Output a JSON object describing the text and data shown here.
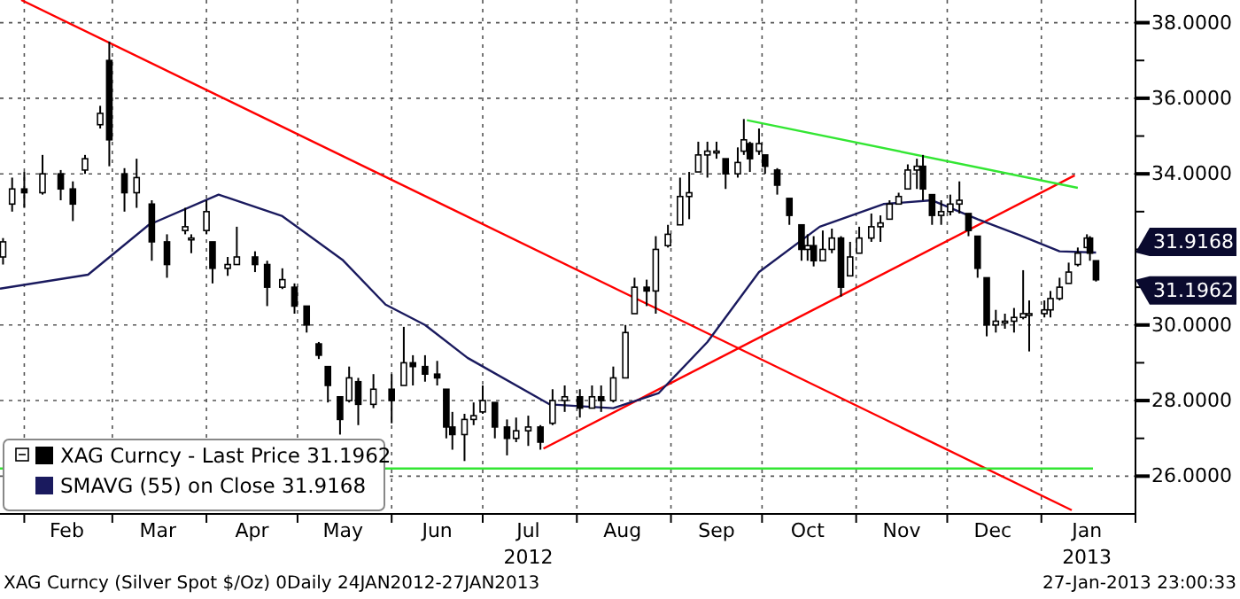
{
  "chart_data": {
    "type": "candlestick",
    "xlim": [
      "2012-01-24",
      "2013-02-01"
    ],
    "xticks": [
      {
        "value": "2012-02-01",
        "label": null
      },
      {
        "value": "2012-02-15",
        "label": "Feb"
      },
      {
        "value": "2012-03-01",
        "label": null
      },
      {
        "value": "2012-03-16",
        "label": "Mar"
      },
      {
        "value": "2012-04-01",
        "label": null
      },
      {
        "value": "2012-04-16",
        "label": "Apr"
      },
      {
        "value": "2012-05-01",
        "label": null
      },
      {
        "value": "2012-05-16",
        "label": "May"
      },
      {
        "value": "2012-06-01",
        "label": null
      },
      {
        "value": "2012-06-16",
        "label": "Jun"
      },
      {
        "value": "2012-07-01",
        "label": null
      },
      {
        "value": "2012-07-16",
        "label": "Jul\n2012"
      },
      {
        "value": "2012-08-01",
        "label": null
      },
      {
        "value": "2012-08-16",
        "label": "Aug"
      },
      {
        "value": "2012-09-01",
        "label": null
      },
      {
        "value": "2012-09-16",
        "label": "Sep"
      },
      {
        "value": "2012-10-01",
        "label": null
      },
      {
        "value": "2012-10-16",
        "label": "Oct"
      },
      {
        "value": "2012-11-01",
        "label": null
      },
      {
        "value": "2012-11-16",
        "label": "Nov"
      },
      {
        "value": "2012-12-01",
        "label": null
      },
      {
        "value": "2012-12-16",
        "label": "Dec"
      },
      {
        "value": "2013-01-01",
        "label": null
      },
      {
        "value": "2013-01-16",
        "label": "Jan\n2013"
      },
      {
        "value": "2013-02-01",
        "label": null
      }
    ],
    "ylim": [
      25,
      38.6
    ],
    "yticks": [
      {
        "value": 26,
        "label": "26.0000"
      },
      {
        "value": 27,
        "label": null
      },
      {
        "value": 28,
        "label": "28.0000"
      },
      {
        "value": 29,
        "label": null
      },
      {
        "value": 30,
        "label": "30.0000"
      },
      {
        "value": 31,
        "label": null
      },
      {
        "value": 32,
        "label": null
      },
      {
        "value": 33,
        "label": null
      },
      {
        "value": 34,
        "label": "34.0000"
      },
      {
        "value": 35,
        "label": null
      },
      {
        "value": 36,
        "label": "36.0000"
      },
      {
        "value": 37,
        "label": null
      },
      {
        "value": 38,
        "label": "38.0000"
      }
    ],
    "grid": true,
    "legend": "bottom left",
    "series": [
      {
        "type": "line",
        "color": "#ff0000",
        "x": [
          "2012-01-31",
          "2013-01-11"
        ],
        "values": [
          38.6,
          25.1
        ]
      },
      {
        "type": "line",
        "color": "#ff0000",
        "x": [
          "2012-07-21",
          "2013-01-12"
        ],
        "values": [
          26.73,
          33.96
        ]
      },
      {
        "type": "line",
        "color": "#33e633",
        "x": [
          "2012-09-26",
          "2013-01-13"
        ],
        "values": [
          35.42,
          33.63
        ]
      },
      {
        "type": "line",
        "color": "#33e633",
        "x": [
          "2012-01-24",
          "2013-01-18"
        ],
        "values": [
          26.2,
          26.2
        ]
      },
      {
        "type": "line",
        "name": "SMAVG (55) on Close 31.9168",
        "color": "#1a1a5e",
        "x": [
          "2012-01-24",
          "2012-02-22",
          "2012-03-13",
          "2012-04-05",
          "2012-04-26",
          "2012-05-16",
          "2012-05-30",
          "2012-06-12",
          "2012-06-26",
          "2012-07-23",
          "2012-08-13",
          "2012-08-28",
          "2012-09-13",
          "2012-09-30",
          "2012-10-20",
          "2012-11-10",
          "2012-11-26",
          "2012-12-11",
          "2012-12-25",
          "2013-01-07",
          "2013-01-19"
        ],
        "values": [
          30.96,
          31.33,
          32.65,
          33.45,
          32.88,
          31.71,
          30.54,
          30.0,
          29.13,
          27.9,
          27.8,
          28.2,
          29.55,
          31.4,
          32.6,
          33.2,
          33.3,
          32.8,
          32.37,
          31.95,
          31.9168
        ]
      },
      {
        "name": "XAG Curncy - Last Price 31.1962",
        "color": "#000000",
        "x": [
          "2012-01-25",
          "2012-01-28",
          "2012-02-01",
          "2012-02-07",
          "2012-02-13",
          "2012-02-17",
          "2012-02-21",
          "2012-02-26",
          "2012-02-29",
          "2012-03-05",
          "2012-03-09",
          "2012-03-14",
          "2012-03-19",
          "2012-03-25",
          "2012-03-27",
          "2012-04-01",
          "2012-04-03",
          "2012-04-08",
          "2012-04-11",
          "2012-04-17",
          "2012-04-21",
          "2012-04-26",
          "2012-04-30",
          "2012-05-04",
          "2012-05-08",
          "2012-05-11",
          "2012-05-15",
          "2012-05-18",
          "2012-05-21",
          "2012-05-26",
          "2012-06-01",
          "2012-06-05",
          "2012-06-08",
          "2012-06-12",
          "2012-06-16",
          "2012-06-19",
          "2012-06-21",
          "2012-06-25",
          "2012-06-28",
          "2012-07-01",
          "2012-07-05",
          "2012-07-09",
          "2012-07-12",
          "2012-07-16",
          "2012-07-20",
          "2012-07-24",
          "2012-07-28",
          "2012-08-02",
          "2012-08-06",
          "2012-08-09",
          "2012-08-13",
          "2012-08-17",
          "2012-08-20",
          "2012-08-24",
          "2012-08-27",
          "2012-08-31",
          "2012-09-04",
          "2012-09-07",
          "2012-09-10",
          "2012-09-13",
          "2012-09-16",
          "2012-09-19",
          "2012-09-23",
          "2012-09-25",
          "2012-09-27",
          "2012-09-30",
          "2012-10-02",
          "2012-10-06",
          "2012-10-10",
          "2012-10-14",
          "2012-10-16",
          "2012-10-18",
          "2012-10-21",
          "2012-10-24",
          "2012-10-27",
          "2012-10-30",
          "2012-11-02",
          "2012-11-06",
          "2012-11-09",
          "2012-11-12",
          "2012-11-15",
          "2012-11-18",
          "2012-11-21",
          "2012-11-23",
          "2012-11-26",
          "2012-11-29",
          "2012-12-02",
          "2012-12-05",
          "2012-12-08",
          "2012-12-11",
          "2012-12-14",
          "2012-12-17",
          "2012-12-20",
          "2012-12-23",
          "2012-12-26",
          "2012-12-28",
          "2013-01-02",
          "2013-01-04",
          "2013-01-07",
          "2013-01-10",
          "2013-01-13",
          "2013-01-16",
          "2013-01-17",
          "2013-01-19"
        ],
        "ohlc": [
          [
            31.8,
            32.3,
            31.6,
            32.2
          ],
          [
            33.2,
            33.9,
            33.0,
            33.6
          ],
          [
            33.6,
            34.05,
            33.1,
            33.5
          ],
          [
            33.5,
            34.5,
            33.45,
            34.0
          ],
          [
            34.0,
            34.1,
            33.3,
            33.6
          ],
          [
            33.6,
            33.8,
            32.75,
            33.2
          ],
          [
            34.1,
            34.5,
            34.0,
            34.4
          ],
          [
            35.3,
            35.8,
            35.2,
            35.6
          ],
          [
            37.0,
            37.5,
            34.2,
            34.9
          ],
          [
            34.0,
            34.15,
            33.0,
            33.5
          ],
          [
            33.5,
            34.4,
            33.1,
            33.9
          ],
          [
            33.2,
            33.3,
            31.7,
            32.2
          ],
          [
            32.2,
            32.4,
            31.25,
            31.6
          ],
          [
            32.5,
            33.1,
            32.4,
            32.6
          ],
          [
            32.3,
            32.4,
            31.9,
            32.3
          ],
          [
            32.5,
            33.3,
            32.4,
            33.0
          ],
          [
            32.2,
            32.2,
            31.1,
            31.5
          ],
          [
            31.5,
            31.8,
            31.3,
            31.6
          ],
          [
            31.6,
            32.6,
            31.6,
            31.8
          ],
          [
            31.8,
            31.95,
            31.4,
            31.6
          ],
          [
            31.6,
            31.7,
            30.5,
            31.0
          ],
          [
            31.0,
            31.5,
            30.95,
            31.2
          ],
          [
            31.0,
            31.1,
            30.3,
            30.5
          ],
          [
            30.5,
            30.5,
            29.8,
            30.0
          ],
          [
            29.5,
            29.55,
            29.1,
            29.2
          ],
          [
            28.9,
            28.9,
            27.95,
            28.4
          ],
          [
            28.1,
            28.1,
            27.1,
            27.5
          ],
          [
            28.0,
            28.9,
            27.95,
            28.6
          ],
          [
            28.5,
            28.6,
            27.35,
            27.9
          ],
          [
            27.9,
            28.7,
            27.8,
            28.3
          ],
          [
            28.3,
            28.7,
            27.4,
            28.0
          ],
          [
            28.4,
            29.95,
            28.4,
            29.0
          ],
          [
            29.0,
            29.2,
            28.4,
            28.9
          ],
          [
            28.9,
            29.2,
            28.5,
            28.7
          ],
          [
            28.7,
            29.05,
            28.4,
            28.6
          ],
          [
            28.3,
            28.3,
            27.0,
            27.3
          ],
          [
            27.3,
            27.7,
            26.7,
            27.1
          ],
          [
            27.1,
            27.65,
            26.4,
            27.5
          ],
          [
            27.5,
            27.95,
            27.35,
            27.6
          ],
          [
            27.7,
            28.4,
            27.65,
            28.0
          ],
          [
            27.95,
            27.95,
            27.0,
            27.3
          ],
          [
            27.3,
            27.5,
            26.55,
            27.0
          ],
          [
            27.0,
            27.55,
            26.9,
            27.2
          ],
          [
            27.2,
            27.6,
            26.8,
            27.3
          ],
          [
            27.3,
            27.35,
            26.7,
            26.9
          ],
          [
            27.4,
            28.3,
            27.35,
            28.0
          ],
          [
            28.0,
            28.4,
            27.7,
            28.1
          ],
          [
            28.1,
            28.3,
            27.55,
            27.8
          ],
          [
            27.8,
            28.4,
            27.8,
            28.1
          ],
          [
            28.1,
            28.4,
            27.7,
            28.0
          ],
          [
            28.0,
            28.9,
            27.95,
            28.6
          ],
          [
            28.6,
            30.0,
            28.6,
            29.8
          ],
          [
            30.3,
            31.25,
            30.3,
            31.0
          ],
          [
            31.0,
            31.2,
            30.5,
            30.9
          ],
          [
            30.9,
            32.35,
            30.3,
            32.0
          ],
          [
            32.1,
            32.65,
            32.05,
            32.4
          ],
          [
            32.65,
            33.9,
            32.65,
            33.4
          ],
          [
            33.4,
            34.05,
            32.8,
            33.5
          ],
          [
            34.05,
            34.85,
            34.05,
            34.5
          ],
          [
            34.5,
            34.85,
            33.9,
            34.6
          ],
          [
            34.6,
            34.85,
            34.4,
            34.6
          ],
          [
            34.4,
            34.4,
            33.6,
            34.0
          ],
          [
            34.0,
            34.7,
            33.9,
            34.3
          ],
          [
            34.6,
            35.45,
            34.5,
            34.9
          ],
          [
            34.8,
            34.85,
            34.05,
            34.4
          ],
          [
            34.6,
            35.2,
            34.5,
            34.8
          ],
          [
            34.5,
            34.5,
            34.0,
            34.2
          ],
          [
            34.1,
            34.15,
            33.45,
            33.7
          ],
          [
            33.35,
            33.35,
            32.65,
            32.9
          ],
          [
            32.65,
            32.65,
            31.7,
            32.0
          ],
          [
            32.0,
            32.4,
            31.7,
            32.1
          ],
          [
            32.1,
            32.35,
            31.55,
            31.7
          ],
          [
            31.7,
            32.5,
            31.7,
            32.0
          ],
          [
            32.0,
            32.55,
            31.9,
            32.3
          ],
          [
            32.3,
            32.35,
            30.75,
            31.0
          ],
          [
            31.3,
            32.2,
            31.3,
            31.8
          ],
          [
            31.9,
            32.6,
            31.9,
            32.3
          ],
          [
            32.3,
            32.95,
            32.2,
            32.6
          ],
          [
            32.6,
            32.9,
            32.2,
            32.7
          ],
          [
            32.8,
            33.3,
            32.8,
            33.2
          ],
          [
            33.2,
            33.5,
            33.2,
            33.4
          ],
          [
            33.6,
            34.25,
            33.6,
            34.1
          ],
          [
            34.1,
            34.4,
            33.6,
            34.2
          ],
          [
            34.2,
            34.5,
            33.3,
            33.6
          ],
          [
            33.45,
            33.45,
            32.65,
            32.9
          ],
          [
            32.9,
            33.3,
            32.65,
            33.0
          ],
          [
            33.0,
            33.45,
            32.9,
            33.2
          ],
          [
            33.2,
            33.8,
            32.95,
            33.3
          ],
          [
            32.95,
            32.95,
            32.35,
            32.5
          ],
          [
            32.35,
            32.35,
            31.25,
            31.5
          ],
          [
            31.25,
            31.25,
            29.7,
            30.0
          ],
          [
            30.0,
            30.4,
            29.8,
            30.1
          ],
          [
            30.1,
            30.3,
            29.9,
            30.1
          ],
          [
            30.1,
            30.45,
            29.8,
            30.2
          ],
          [
            30.2,
            31.45,
            30.15,
            30.3
          ],
          [
            30.3,
            30.65,
            29.3,
            30.3
          ],
          [
            30.3,
            30.65,
            30.2,
            30.4
          ],
          [
            30.4,
            30.9,
            30.2,
            30.7
          ],
          [
            30.7,
            31.25,
            30.65,
            31.0
          ],
          [
            31.1,
            31.65,
            31.1,
            31.4
          ],
          [
            31.6,
            32.05,
            31.55,
            31.9
          ],
          [
            32.05,
            32.4,
            32.05,
            32.3
          ],
          [
            32.3,
            32.35,
            31.7,
            31.9
          ],
          [
            31.7,
            31.7,
            31.15,
            31.1962
          ]
        ]
      }
    ],
    "annotations": [
      "XAG Curncy (Silver Spot  $/Oz) 0Daily 24JAN2012-27JAN2013",
      "27-Jan-2013 23:00:33",
      "31.9168",
      "31.1962"
    ]
  }
}
